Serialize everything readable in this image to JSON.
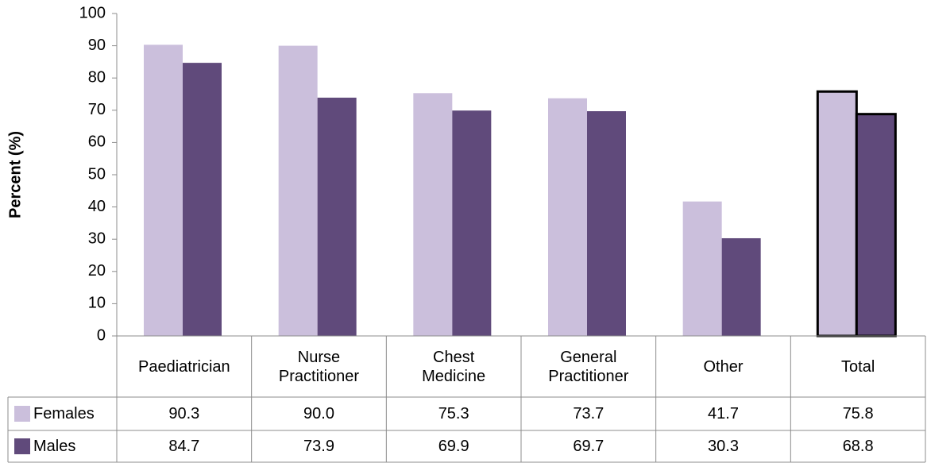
{
  "chart_data": {
    "type": "bar",
    "y_axis_label": "Percent (%)",
    "categories": [
      "Paediatrician",
      "Nurse Practitioner",
      "Chest Medicine",
      "General Practitioner",
      "Other",
      "Total"
    ],
    "series": [
      {
        "name": "Females",
        "color": "#cbbfdc",
        "values": [
          90.3,
          90.0,
          75.3,
          73.7,
          41.7,
          75.8
        ],
        "value_labels": [
          "90.3",
          "90.0",
          "75.3",
          "73.7",
          "41.7",
          "75.8"
        ]
      },
      {
        "name": "Males",
        "color": "#604a7b",
        "values": [
          84.7,
          73.9,
          69.9,
          69.7,
          30.3,
          68.8
        ],
        "value_labels": [
          "84.7",
          "73.9",
          "69.9",
          "69.7",
          "30.3",
          "68.8"
        ]
      }
    ],
    "ylim": [
      0,
      100
    ],
    "yticks": [
      0,
      10,
      20,
      30,
      40,
      50,
      60,
      70,
      80,
      90,
      100
    ],
    "grid": false,
    "outline": {
      "category": "Total",
      "color": "#000000"
    },
    "data_table": true
  }
}
